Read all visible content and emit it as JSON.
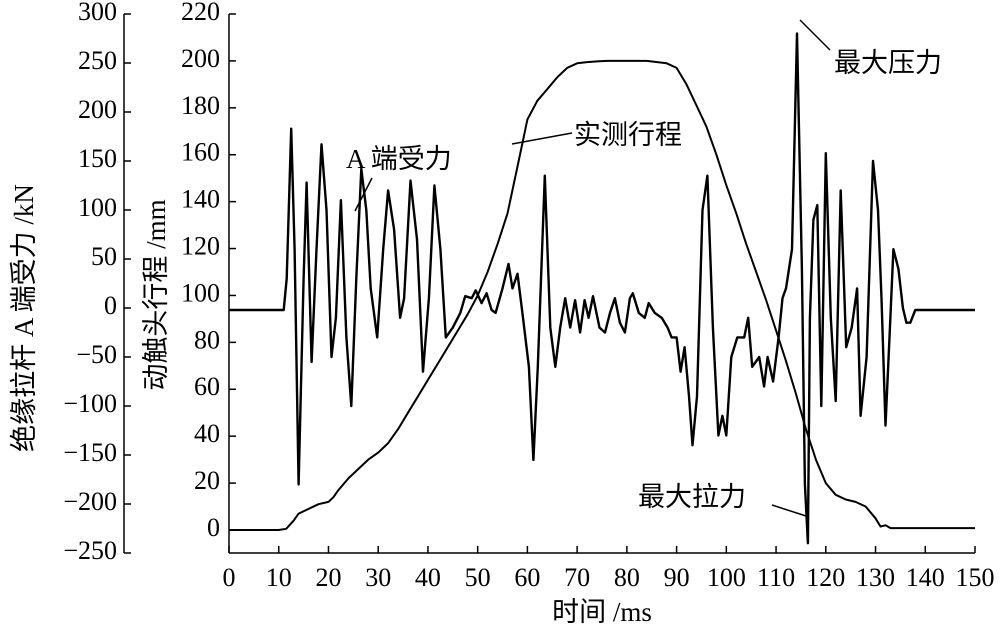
{
  "chart_data": {
    "type": "line",
    "x_label": "时间 /ms",
    "x_ticks": [
      "0",
      "10",
      "20",
      "30",
      "40",
      "50",
      "60",
      "70",
      "80",
      "90",
      "100",
      "110",
      "120",
      "130",
      "140",
      "150"
    ],
    "xlim": [
      0,
      150
    ],
    "y_left": {
      "label": "绝缘拉杆 A 端受力 /kN",
      "ticks": [
        "300",
        "250",
        "200",
        "150",
        "100",
        "50",
        "0",
        "−50",
        "−100",
        "−150",
        "−200",
        "−250"
      ],
      "ylim": [
        -250,
        300
      ]
    },
    "y_right": {
      "label": "动触头行程 /mm",
      "ticks": [
        "220",
        "200",
        "180",
        "160",
        "140",
        "120",
        "100",
        "80",
        "60",
        "40",
        "20",
        "0"
      ],
      "ylim": [
        0,
        220
      ]
    },
    "series": [
      {
        "name": "实测行程",
        "axis": "y_right",
        "points": [
          [
            0,
            0
          ],
          [
            10,
            0
          ],
          [
            11.5,
            0.5
          ],
          [
            13,
            4
          ],
          [
            14,
            7
          ],
          [
            16,
            9
          ],
          [
            18,
            11
          ],
          [
            20,
            12
          ],
          [
            21,
            14
          ],
          [
            22,
            17
          ],
          [
            24,
            22
          ],
          [
            26,
            26
          ],
          [
            28,
            30
          ],
          [
            30,
            33
          ],
          [
            32,
            37
          ],
          [
            34,
            43
          ],
          [
            36,
            50
          ],
          [
            38,
            57
          ],
          [
            40,
            64
          ],
          [
            42,
            71
          ],
          [
            44,
            78
          ],
          [
            46,
            85
          ],
          [
            48,
            92
          ],
          [
            50,
            100
          ],
          [
            52,
            110
          ],
          [
            54,
            122
          ],
          [
            56,
            135
          ],
          [
            58,
            155
          ],
          [
            60,
            175
          ],
          [
            62,
            183
          ],
          [
            64,
            188
          ],
          [
            66,
            193
          ],
          [
            68,
            197
          ],
          [
            70,
            199
          ],
          [
            72,
            199.5
          ],
          [
            74,
            199.8
          ],
          [
            76,
            200
          ],
          [
            84,
            200
          ],
          [
            88,
            199
          ],
          [
            90,
            197
          ],
          [
            92,
            190
          ],
          [
            94,
            181
          ],
          [
            96,
            172
          ],
          [
            98,
            160
          ],
          [
            100,
            147
          ],
          [
            102,
            135
          ],
          [
            104,
            122
          ],
          [
            106,
            110
          ],
          [
            108,
            98
          ],
          [
            110,
            85
          ],
          [
            112,
            72
          ],
          [
            114,
            58
          ],
          [
            116,
            43
          ],
          [
            118,
            30
          ],
          [
            120,
            20
          ],
          [
            122,
            15
          ],
          [
            124,
            13
          ],
          [
            126,
            12
          ],
          [
            128,
            10
          ],
          [
            130,
            5
          ],
          [
            131,
            1.5
          ],
          [
            132,
            2
          ],
          [
            133,
            0.8
          ],
          [
            135,
            0.8
          ],
          [
            140,
            0.8
          ],
          [
            150,
            0.8
          ]
        ]
      },
      {
        "name": "A 端受力",
        "axis": "y_left",
        "points": [
          [
            0,
            -2
          ],
          [
            11,
            -2
          ],
          [
            11.6,
            30
          ],
          [
            12.5,
            183
          ],
          [
            13.2,
            60
          ],
          [
            14,
            -180
          ],
          [
            15,
            30
          ],
          [
            15.6,
            128
          ],
          [
            16.6,
            -55
          ],
          [
            17.6,
            60
          ],
          [
            18.6,
            167
          ],
          [
            19.6,
            100
          ],
          [
            20.6,
            -50
          ],
          [
            21.5,
            -10
          ],
          [
            22.5,
            110
          ],
          [
            23.6,
            -30
          ],
          [
            24.6,
            -100
          ],
          [
            25.6,
            30
          ],
          [
            26.6,
            142
          ],
          [
            27.6,
            100
          ],
          [
            28.5,
            20
          ],
          [
            29.8,
            -30
          ],
          [
            31,
            60
          ],
          [
            32,
            120
          ],
          [
            33.2,
            80
          ],
          [
            34.4,
            -10
          ],
          [
            35.2,
            10
          ],
          [
            36.5,
            130
          ],
          [
            37.8,
            70
          ],
          [
            39,
            -65
          ],
          [
            40.2,
            10
          ],
          [
            41.3,
            125
          ],
          [
            42.5,
            60
          ],
          [
            43.6,
            -30
          ],
          [
            45,
            -20
          ],
          [
            46.5,
            -5
          ],
          [
            47.5,
            12
          ],
          [
            48.8,
            10
          ],
          [
            49.6,
            18
          ],
          [
            50.8,
            5
          ],
          [
            51.8,
            15
          ],
          [
            52.8,
            -2
          ],
          [
            53.6,
            -5
          ],
          [
            55,
            20
          ],
          [
            56.2,
            45
          ],
          [
            57,
            20
          ],
          [
            58,
            35
          ],
          [
            59,
            -5
          ],
          [
            60.3,
            -60
          ],
          [
            61.2,
            -155
          ],
          [
            62.1,
            -60
          ],
          [
            63.5,
            135
          ],
          [
            64.6,
            -20
          ],
          [
            65.6,
            -60
          ],
          [
            66.6,
            -20
          ],
          [
            67.6,
            10
          ],
          [
            68.6,
            -20
          ],
          [
            69.6,
            8
          ],
          [
            70.6,
            -25
          ],
          [
            71.5,
            8
          ],
          [
            72.3,
            -10
          ],
          [
            73.2,
            12
          ],
          [
            74.5,
            -20
          ],
          [
            75.6,
            -25
          ],
          [
            76.6,
            -5
          ],
          [
            77.6,
            10
          ],
          [
            78.6,
            -15
          ],
          [
            79.6,
            -25
          ],
          [
            80.6,
            10
          ],
          [
            81.2,
            15
          ],
          [
            82.4,
            -5
          ],
          [
            83.6,
            -10
          ],
          [
            84.4,
            5
          ],
          [
            85.6,
            -5
          ],
          [
            87,
            -10
          ],
          [
            88.2,
            -20
          ],
          [
            89,
            -30
          ],
          [
            90,
            -30
          ],
          [
            90.8,
            -65
          ],
          [
            91.6,
            -40
          ],
          [
            92.5,
            -90
          ],
          [
            93.2,
            -140
          ],
          [
            94.1,
            -90
          ],
          [
            95.2,
            100
          ],
          [
            96.2,
            135
          ],
          [
            97.3,
            -20
          ],
          [
            98.4,
            -130
          ],
          [
            99.2,
            -110
          ],
          [
            100,
            -130
          ],
          [
            101,
            -50
          ],
          [
            102.2,
            -30
          ],
          [
            103.6,
            -30
          ],
          [
            104.4,
            -10
          ],
          [
            105.2,
            -60
          ],
          [
            106.6,
            -50
          ],
          [
            107.6,
            -80
          ],
          [
            108.3,
            -50
          ],
          [
            109.4,
            -75
          ],
          [
            110.5,
            -30
          ],
          [
            111.3,
            10
          ],
          [
            112,
            20
          ],
          [
            113.2,
            60
          ],
          [
            114.2,
            280
          ],
          [
            115.2,
            40
          ],
          [
            115.8,
            -180
          ],
          [
            116.4,
            -240
          ],
          [
            116.8,
            -10
          ],
          [
            117.5,
            90
          ],
          [
            118.3,
            105
          ],
          [
            119.1,
            -100
          ],
          [
            120,
            158
          ],
          [
            121,
            -10
          ],
          [
            122,
            -95
          ],
          [
            123,
            120
          ],
          [
            124.1,
            -40
          ],
          [
            125.2,
            -20
          ],
          [
            126.3,
            20
          ],
          [
            127,
            -110
          ],
          [
            128.2,
            -50
          ],
          [
            129.5,
            150
          ],
          [
            130.5,
            100
          ],
          [
            131.2,
            10
          ],
          [
            132,
            -120
          ],
          [
            132.8,
            -30
          ],
          [
            133.6,
            60
          ],
          [
            134.6,
            40
          ],
          [
            135.5,
            0
          ],
          [
            136.2,
            -15
          ],
          [
            137,
            -15
          ],
          [
            138,
            -2
          ],
          [
            150,
            -2
          ]
        ]
      }
    ],
    "annotations": [
      "A 端受力",
      "实测行程",
      "最大压力",
      "最大拉力"
    ]
  }
}
